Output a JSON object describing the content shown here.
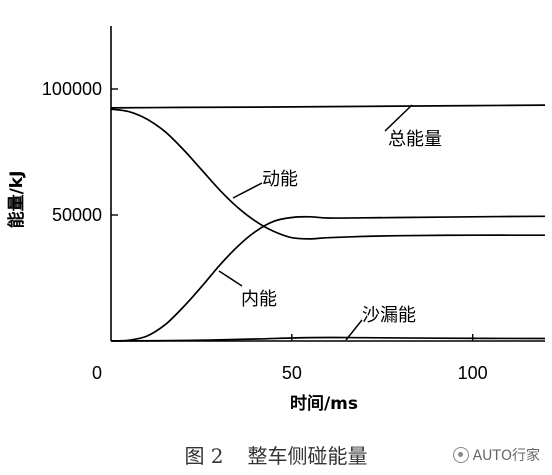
{
  "chart_data": {
    "type": "line",
    "xlabel": "时间/ms",
    "ylabel": "能量/kJ",
    "xlim": [
      0,
      120
    ],
    "ylim": [
      0,
      125000
    ],
    "x_ticks": [
      "0",
      "50",
      "100"
    ],
    "y_ticks": [
      "50000",
      "100000"
    ],
    "grid": false,
    "legend": "none (inline labels)",
    "series": [
      {
        "name": "总能量",
        "x": [
          0,
          20,
          40,
          60,
          80,
          100,
          120
        ],
        "y": [
          92500,
          92700,
          92800,
          93000,
          93200,
          93400,
          93600
        ]
      },
      {
        "name": "动能",
        "x": [
          0,
          5,
          10,
          15,
          20,
          25,
          30,
          35,
          40,
          45,
          50,
          55,
          60,
          70,
          80,
          100,
          120
        ],
        "y": [
          92000,
          91000,
          88000,
          83000,
          76000,
          68000,
          60000,
          53000,
          47500,
          43500,
          41000,
          40500,
          41000,
          41500,
          41800,
          42000,
          42000
        ]
      },
      {
        "name": "内能",
        "x": [
          0,
          5,
          10,
          15,
          20,
          25,
          30,
          35,
          40,
          45,
          50,
          55,
          60,
          70,
          80,
          100,
          120
        ],
        "y": [
          0,
          300,
          2000,
          6500,
          13500,
          21500,
          30000,
          37500,
          43500,
          47500,
          49000,
          49300,
          48800,
          48900,
          49000,
          49300,
          49500
        ]
      },
      {
        "name": "沙漏能",
        "x": [
          0,
          20,
          40,
          50,
          60,
          70,
          90,
          120
        ],
        "y": [
          0,
          200,
          800,
          1200,
          1400,
          1300,
          1100,
          1000
        ]
      }
    ],
    "annotations": [
      "总能量",
      "动能",
      "内能",
      "沙漏能"
    ]
  },
  "caption": {
    "figure_number": "图 2",
    "title": "整车侧碰能量"
  },
  "watermark": {
    "text": "AUTO行家",
    "icon": "wechat-icon"
  }
}
